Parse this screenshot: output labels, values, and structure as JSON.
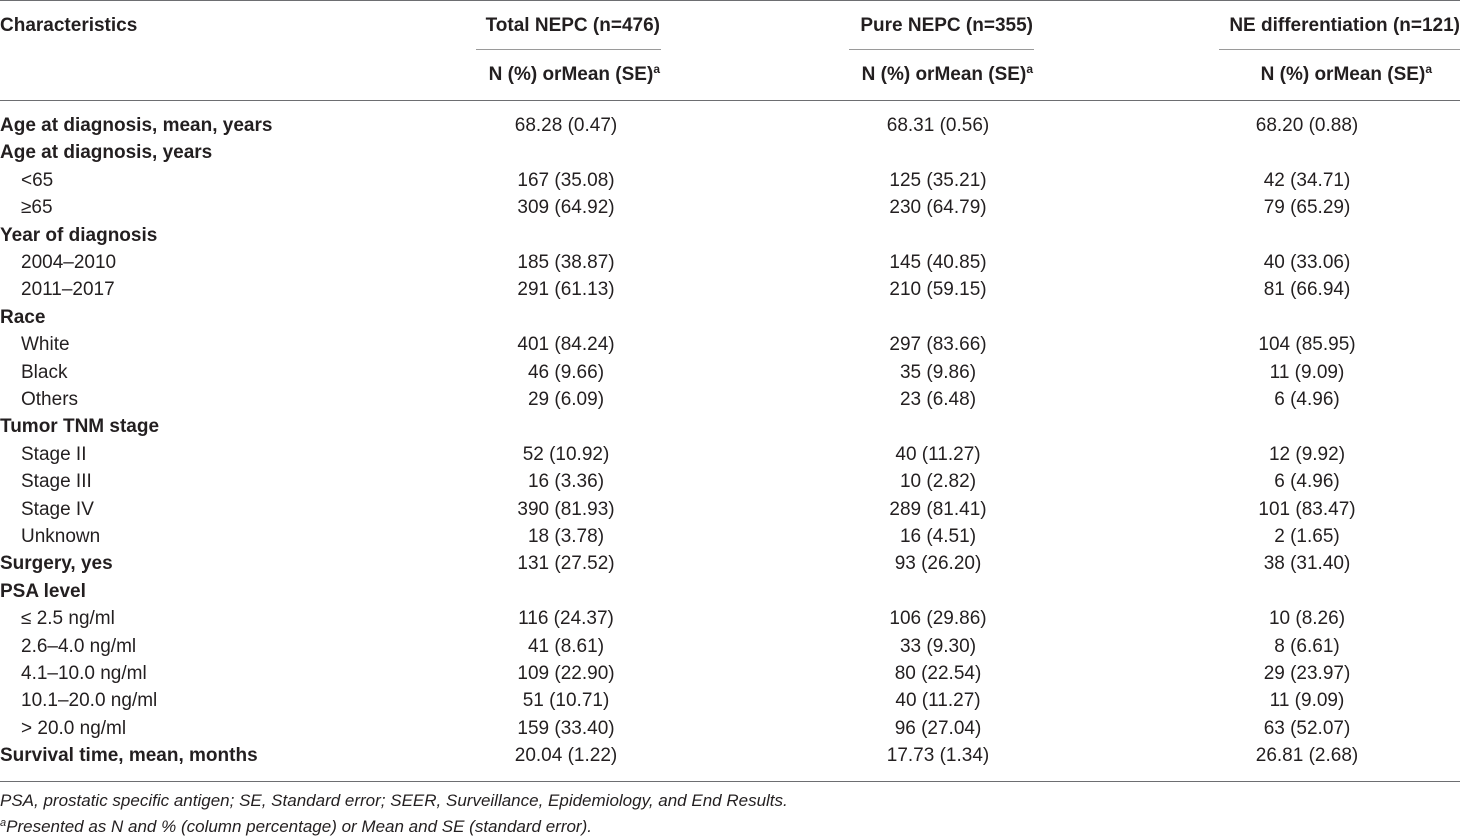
{
  "table": {
    "header": {
      "characteristics": "Characteristics",
      "columns": [
        {
          "title": "Total NEPC (n=476)",
          "subheader": "N (%) orMean (SE)",
          "sup": "a"
        },
        {
          "title": "Pure NEPC (n=355)",
          "subheader": "N (%) orMean (SE)",
          "sup": "a"
        },
        {
          "title": "NE differentiation (n=121)",
          "subheader": "N (%) orMean (SE)",
          "sup": "a"
        }
      ]
    },
    "rows": [
      {
        "label": "Age at diagnosis, mean, years",
        "bold": true,
        "values": [
          "68.28 (0.47)",
          "68.31 (0.56)",
          "68.20 (0.88)"
        ]
      },
      {
        "label": "Age at diagnosis, years",
        "bold": true,
        "values": []
      },
      {
        "label": "<65",
        "values": [
          "167 (35.08)",
          "125 (35.21)",
          "42 (34.71)"
        ]
      },
      {
        "label": "≥65",
        "values": [
          "309 (64.92)",
          "230 (64.79)",
          "79 (65.29)"
        ]
      },
      {
        "label": "Year of diagnosis",
        "bold": true,
        "values": []
      },
      {
        "label": "2004–2010",
        "values": [
          "185 (38.87)",
          "145 (40.85)",
          "40 (33.06)"
        ]
      },
      {
        "label": "2011–2017",
        "values": [
          "291 (61.13)",
          "210 (59.15)",
          "81 (66.94)"
        ]
      },
      {
        "label": "Race",
        "bold": true,
        "values": []
      },
      {
        "label": "White",
        "values": [
          "401 (84.24)",
          "297 (83.66)",
          "104 (85.95)"
        ]
      },
      {
        "label": "Black",
        "values": [
          "46 (9.66)",
          "35 (9.86)",
          "11 (9.09)"
        ]
      },
      {
        "label": "Others",
        "values": [
          "29 (6.09)",
          "23 (6.48)",
          "6 (4.96)"
        ]
      },
      {
        "label": "Tumor TNM stage",
        "bold": true,
        "values": []
      },
      {
        "label": "Stage II",
        "values": [
          "52 (10.92)",
          "40 (11.27)",
          "12 (9.92)"
        ]
      },
      {
        "label": "Stage III",
        "values": [
          "16 (3.36)",
          "10 (2.82)",
          "6 (4.96)"
        ]
      },
      {
        "label": "Stage IV",
        "values": [
          "390 (81.93)",
          "289 (81.41)",
          "101 (83.47)"
        ]
      },
      {
        "label": "Unknown",
        "values": [
          "18 (3.78)",
          "16 (4.51)",
          "2 (1.65)"
        ]
      },
      {
        "label": "Surgery, yes",
        "bold": true,
        "values": [
          "131 (27.52)",
          "93 (26.20)",
          "38 (31.40)"
        ]
      },
      {
        "label": "PSA level",
        "bold": true,
        "values": []
      },
      {
        "label": "≤ 2.5 ng/ml",
        "values": [
          "116 (24.37)",
          "106 (29.86)",
          "10 (8.26)"
        ]
      },
      {
        "label": "2.6–4.0 ng/ml",
        "values": [
          "41 (8.61)",
          "33 (9.30)",
          "8 (6.61)"
        ]
      },
      {
        "label": "4.1–10.0 ng/ml",
        "values": [
          "109 (22.90)",
          "80 (22.54)",
          "29 (23.97)"
        ]
      },
      {
        "label": "10.1–20.0 ng/ml",
        "values": [
          "51 (10.71)",
          "40 (11.27)",
          "11 (9.09)"
        ]
      },
      {
        "label": "> 20.0 ng/ml",
        "values": [
          "159 (33.40)",
          "96 (27.04)",
          "63 (52.07)"
        ]
      },
      {
        "label": "Survival time, mean, months",
        "bold": true,
        "values": [
          "20.04 (1.22)",
          "17.73 (1.34)",
          "26.81 (2.68)"
        ]
      }
    ]
  },
  "footnotes": {
    "abbreviations": "PSA, prostatic specific antigen; SE, Standard error; SEER, Surveillance, Epidemiology, and End Results.",
    "a_marker": "a",
    "a_text": "Presented as N and % (column percentage) or Mean and SE (standard error)."
  }
}
